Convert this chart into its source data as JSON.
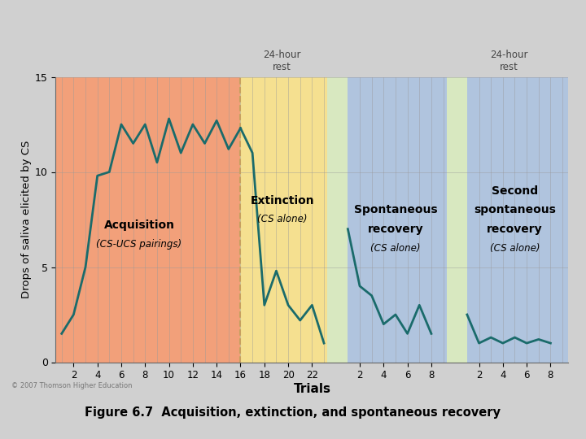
{
  "outer_bg_color": "#d8e8c0",
  "fig_bg_color": "#d0d0d0",
  "acquisition_color": "#f2a07a",
  "extinction_color": "#f5e090",
  "recovery_color": "#b0c4de",
  "line_color": "#1a6b6b",
  "grid_color": "#999999",
  "dashed_line_color": "#c8a060",
  "gap_color": "#d8e8c0",
  "acquisition_x": [
    1,
    2,
    3,
    4,
    5,
    6,
    7,
    8,
    9,
    10,
    11,
    12,
    13,
    14,
    15,
    16
  ],
  "acquisition_y": [
    1.5,
    2.5,
    5.0,
    9.8,
    10.0,
    12.5,
    11.5,
    12.5,
    10.5,
    12.8,
    11.0,
    12.5,
    11.5,
    12.7,
    11.2,
    12.3
  ],
  "extinction_x": [
    16,
    17,
    18,
    19,
    20,
    21,
    22,
    23
  ],
  "extinction_y": [
    12.3,
    11.0,
    3.0,
    4.8,
    3.0,
    2.2,
    3.0,
    1.0
  ],
  "spont1_x": [
    1,
    2,
    3,
    4,
    5,
    6,
    7,
    8
  ],
  "spont1_y": [
    7.0,
    4.0,
    3.5,
    2.0,
    2.5,
    1.5,
    3.0,
    1.5
  ],
  "spont2_x": [
    1,
    2,
    3,
    4,
    5,
    6,
    7,
    8
  ],
  "spont2_y": [
    2.5,
    1.0,
    1.3,
    1.0,
    1.3,
    1.0,
    1.2,
    1.0
  ],
  "ylabel": "Drops of saliva elicited by CS",
  "xlabel": "Trials",
  "ylim": [
    0,
    15
  ],
  "caption": "Figure 6.7  Acquisition, extinction, and spontaneous recovery",
  "acq_label1": "Acquisition",
  "acq_label2": "(CS-UCS pairings)",
  "ext_label1": "Extinction",
  "ext_label2": "(CS alone)",
  "sp1_label1": "Spontaneous",
  "sp1_label2": "recovery",
  "sp1_label3": "(CS alone)",
  "sp2_label1": "Second",
  "sp2_label2": "spontaneous",
  "sp2_label3": "recovery",
  "sp2_label4": "(CS alone)",
  "rest1_label": "24-hour\nrest",
  "rest2_label": "24-hour\nrest",
  "copyright": "© 2007 Thomson Higher Education"
}
